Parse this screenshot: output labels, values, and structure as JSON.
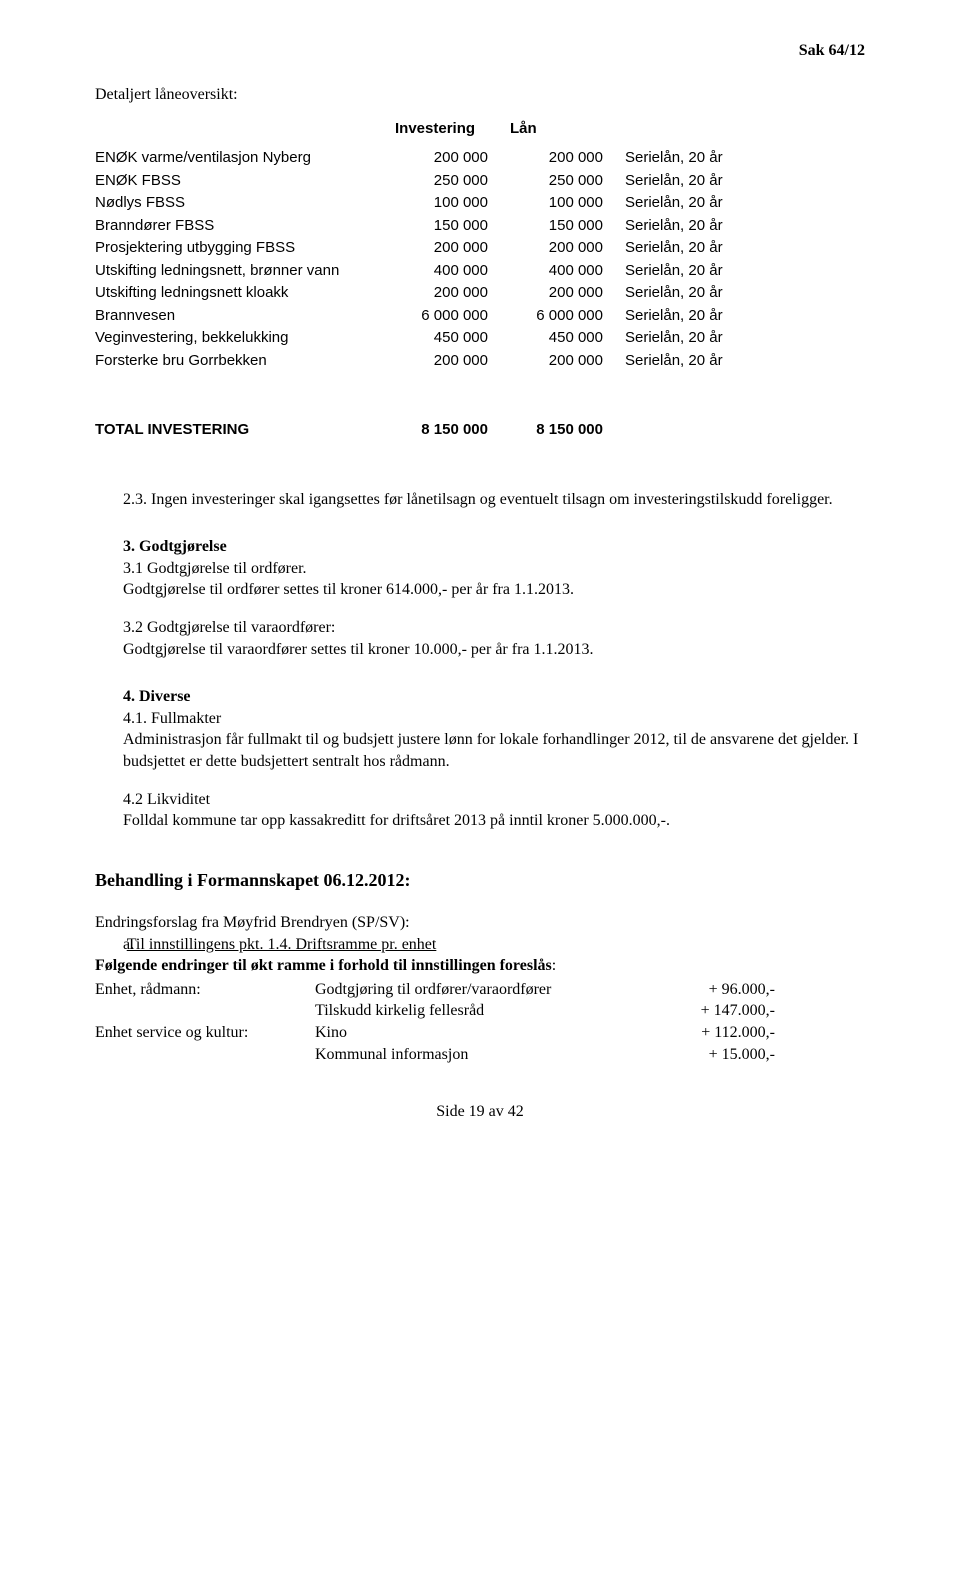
{
  "header": {
    "page_id": "Sak 64/12"
  },
  "loan_section": {
    "title": "Detaljert låneoversikt:",
    "columns": {
      "name": "",
      "investering": "Investering",
      "laan": "Lån"
    },
    "rows": [
      {
        "name": "ENØK varme/ventilasjon Nyberg",
        "inv": "200 000",
        "loan": "200 000",
        "term": "Serielån, 20 år"
      },
      {
        "name": "ENØK FBSS",
        "inv": "250 000",
        "loan": "250 000",
        "term": "Serielån, 20 år"
      },
      {
        "name": "Nødlys FBSS",
        "inv": "100 000",
        "loan": "100 000",
        "term": "Serielån, 20 år"
      },
      {
        "name": "Branndører FBSS",
        "inv": "150 000",
        "loan": "150 000",
        "term": "Serielån, 20 år"
      },
      {
        "name": "Prosjektering utbygging FBSS",
        "inv": "200 000",
        "loan": "200 000",
        "term": "Serielån, 20 år"
      },
      {
        "name": "Utskifting ledningsnett, brønner vann",
        "inv": "400 000",
        "loan": "400 000",
        "term": "Serielån, 20 år"
      },
      {
        "name": "Utskifting ledningsnett kloakk",
        "inv": "200 000",
        "loan": "200 000",
        "term": "Serielån, 20 år"
      },
      {
        "name": "Brannvesen",
        "inv": "6 000 000",
        "loan": "6 000 000",
        "term": "Serielån, 20 år"
      },
      {
        "name": "Veginvestering, bekkelukking",
        "inv": "450 000",
        "loan": "450 000",
        "term": "Serielån, 20 år"
      },
      {
        "name": "Forsterke bru Gorrbekken",
        "inv": "200 000",
        "loan": "200 000",
        "term": "Serielån, 20 år"
      }
    ],
    "total": {
      "label": "TOTAL INVESTERING",
      "inv": "8 150 000",
      "loan": "8 150 000"
    }
  },
  "item_2_3": "2.3. Ingen investeringer skal igangsettes før lånetilsagn og eventuelt tilsagn om investeringstilskudd foreligger.",
  "sec3": {
    "heading": "3.  Godtgjørelse",
    "p31a": "3.1 Godtgjørelse til ordfører.",
    "p31b": "Godtgjørelse til ordfører settes til kroner 614.000,- per år fra 1.1.2013.",
    "p32a": "3.2 Godtgjørelse til varaordfører:",
    "p32b": "Godtgjørelse til varaordfører settes til kroner 10.000,- per år fra 1.1.2013."
  },
  "sec4": {
    "heading": "4.  Diverse",
    "p41a": "4.1. Fullmakter",
    "p41b": "Administrasjon får fullmakt til og budsjett justere lønn for lokale forhandlinger 2012, til de ansvarene det gjelder. I budsjettet er dette budsjettert sentralt hos rådmann.",
    "p42a": "4.2 Likviditet",
    "p42b": "Folldal kommune tar opp kassakreditt for driftsåret 2013 på inntil kroner 5.000.000,-."
  },
  "formann": {
    "heading": "Behandling i Formannskapet 06.12.2012:",
    "intro": "Endringsforslag fra Møyfrid Brendryen (SP/SV):",
    "pkt_a_label": "a.",
    "pkt_a_text": "Til innstillingens pkt. 1.4. Driftsramme pr. enhet",
    "bold_line": "Følgende endringer til økt ramme i forhold til innstillingen foreslås",
    "colon": ":",
    "allocations": [
      {
        "unit": "Enhet, rådmann:",
        "item": "Godtgjøring til ordfører/varaordfører",
        "amount": "+ 96.000,-"
      },
      {
        "unit": "",
        "item": "Tilskudd kirkelig fellesråd",
        "amount": "+ 147.000,-"
      },
      {
        "unit": "Enhet service og kultur:",
        "item": "Kino",
        "amount": "+ 112.000,-"
      },
      {
        "unit": "",
        "item": "Kommunal informasjon",
        "amount": "+ 15.000,-"
      }
    ]
  },
  "footer": {
    "text": "Side 19 av 42"
  }
}
